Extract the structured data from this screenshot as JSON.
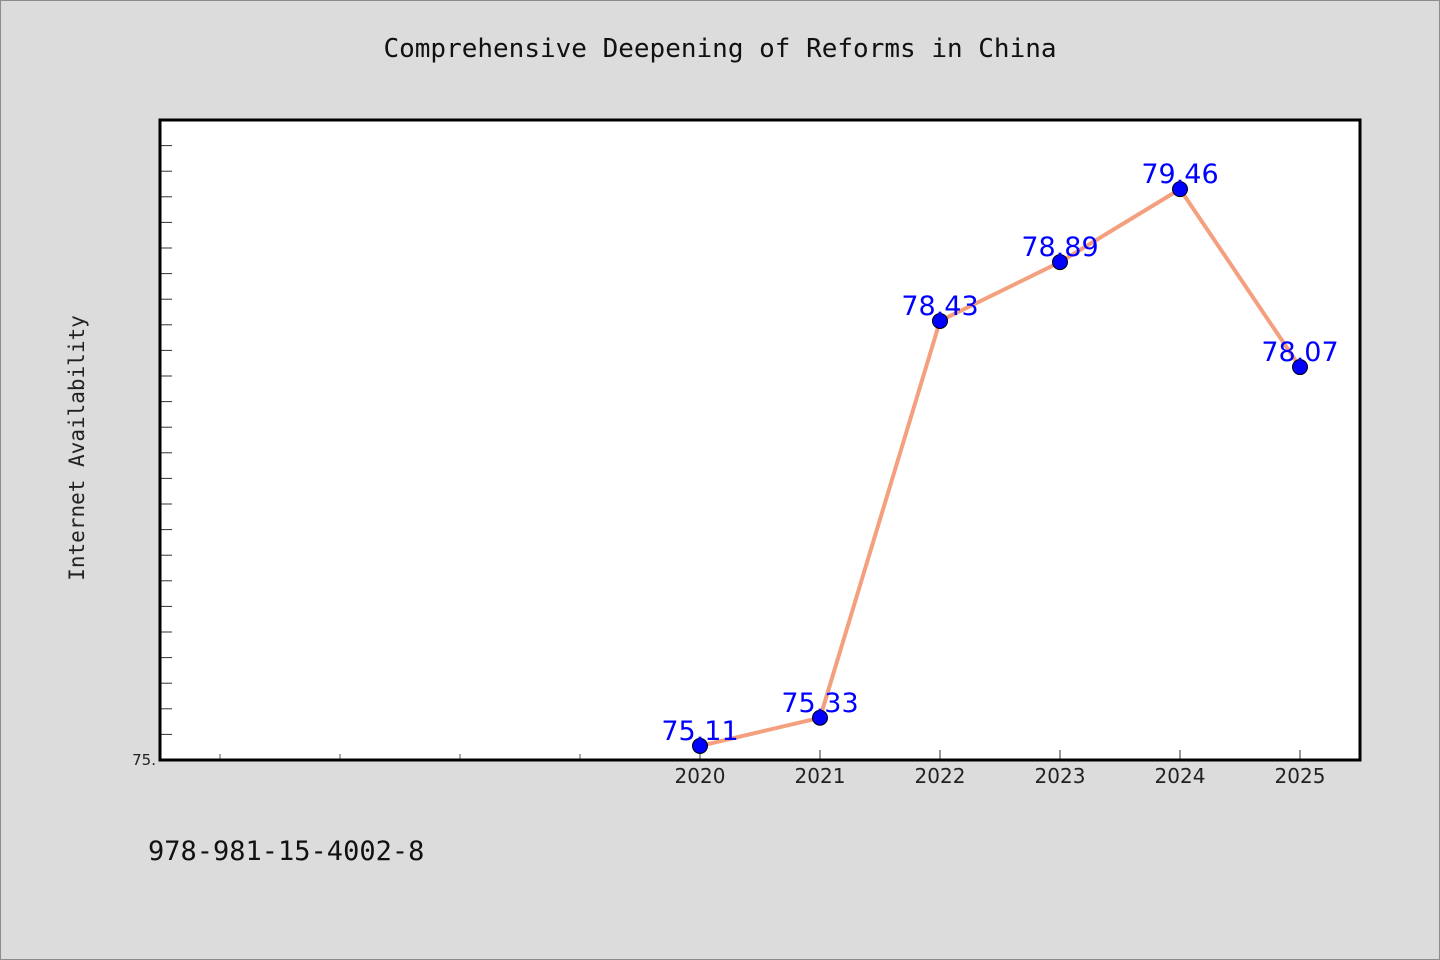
{
  "chart_data": {
    "type": "line",
    "title": "Comprehensive Deepening of Reforms in China",
    "ylabel": "Internet Availability",
    "xlabel": "",
    "categories": [
      "2020",
      "2021",
      "2022",
      "2023",
      "2024",
      "2025"
    ],
    "values": [
      75.11,
      75.33,
      78.43,
      78.89,
      79.46,
      78.07
    ],
    "data_labels": [
      "75.11",
      "75.33",
      "78.43",
      "78.89",
      "79.46",
      "78.07"
    ],
    "ylim": [
      75.0,
      80.0
    ],
    "y_tick_labels": [
      "75."
    ],
    "grid": false,
    "legend": "none",
    "line_color": "#f4a07e",
    "marker_color": "#0000ff",
    "label_color": "#0000ff"
  },
  "footnote": "978-981-15-4002-8"
}
